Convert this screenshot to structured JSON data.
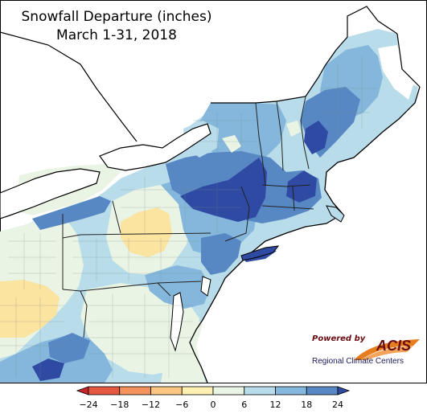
{
  "title": {
    "line1": "Snowfall Departure (inches)",
    "line2": "March 1-31, 2018"
  },
  "legend": {
    "ticks": [
      "−24",
      "−18",
      "−12",
      "−6",
      "0",
      "6",
      "12",
      "18",
      "24"
    ],
    "colors": [
      "#c6262b",
      "#e3583f",
      "#f4925d",
      "#fbc681",
      "#fdf0b0",
      "#e9f4e4",
      "#b8dcea",
      "#84b7db",
      "#5788c4",
      "#2f4aa3"
    ]
  },
  "logo": {
    "powered_by": "Powered by",
    "brand": "ACIS",
    "subtitle": "Regional Climate Centers"
  },
  "map": {
    "region": "Northeast United States",
    "colors": {
      "water": "#ffffff",
      "outside": "#ffffff",
      "positive_18_24": "#2f4aa3",
      "positive_12_18": "#5788c4",
      "positive_6_12": "#84b7db",
      "positive_0_6": "#b8dcea",
      "near_zero": "#e9f4e4",
      "negative_0_6": "#fdf0b0",
      "negative_6_12": "#fbd58f"
    }
  }
}
